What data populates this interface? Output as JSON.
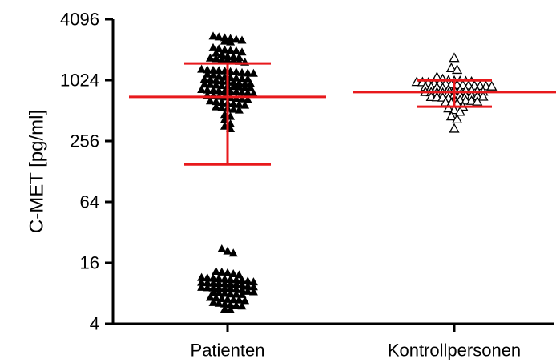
{
  "chart_data": {
    "type": "scatter",
    "title": "",
    "xlabel": "",
    "ylabel": "C-MET  [pg/ml]",
    "y_scale": "log2",
    "ylim": [
      4,
      4096
    ],
    "y_ticks": [
      4,
      16,
      64,
      256,
      1024,
      4096
    ],
    "y_tick_labels": [
      "4",
      "16",
      "64",
      "256",
      "1024",
      "4096"
    ],
    "categories": [
      "Patienten",
      "Kontrollpersonen"
    ],
    "grid": false,
    "legend": "none",
    "colors": {
      "points": "#000000",
      "summary": "#e8191c"
    },
    "series": [
      {
        "category": "Patienten",
        "marker": "filled-triangle",
        "mean": 700,
        "sd_upper": 1500,
        "sd_lower": 150,
        "values": [
          2500,
          2700,
          2600,
          2800,
          2450,
          2650,
          2750,
          2550,
          1900,
          2000,
          2100,
          1950,
          2050,
          1850,
          2150,
          2020,
          1600,
          1700,
          1650,
          1750,
          1550,
          1720,
          1620,
          1680,
          1580,
          1760,
          1200,
          1250,
          1300,
          1180,
          1280,
          1220,
          1320,
          1160,
          1240,
          1270,
          1210,
          1290,
          1050,
          1100,
          1000,
          1080,
          1020,
          1120,
          980,
          1060,
          1010,
          1090,
          1040,
          1070,
          900,
          950,
          870,
          920,
          890,
          940,
          880,
          960,
          910,
          930,
          860,
          945,
          780,
          800,
          760,
          820,
          790,
          810,
          770,
          830,
          795,
          815,
          700,
          680,
          720,
          660,
          690,
          710,
          670,
          730,
          620,
          600,
          640,
          580,
          610,
          630,
          590,
          540,
          560,
          520,
          550,
          530,
          450,
          420,
          470,
          340,
          380,
          360,
          22,
          21,
          20,
          12.5,
          13,
          12.8,
          12.2,
          13.2,
          11,
          11.5,
          10.8,
          11.2,
          10.6,
          11.4,
          11.1,
          10.9,
          11.3,
          10,
          10.2,
          9.8,
          10.4,
          9.9,
          10.1,
          9.7,
          10.3,
          10.05,
          9,
          9.3,
          8.8,
          9.1,
          8.9,
          9.2,
          8.7,
          9.4,
          8.95,
          9.05,
          8,
          8.2,
          7.8,
          8.4,
          7.9,
          8.1,
          7.85,
          8.3,
          7,
          7.2,
          6.8,
          7.3,
          6.9,
          7.1,
          6.95,
          6.2,
          6.4,
          6.0,
          6.5,
          6.1,
          6.3,
          5.5,
          5.6
        ]
      },
      {
        "category": "Kontrollpersonen",
        "marker": "open-triangle",
        "mean": 780,
        "sd_upper": 1020,
        "sd_lower": 560,
        "values": [
          1700,
          1350,
          1300,
          1050,
          1100,
          1000,
          980,
          1010,
          960,
          990,
          970,
          1020,
          950,
          1005,
          985,
          965,
          900,
          880,
          920,
          870,
          910,
          890,
          930,
          860,
          905,
          895,
          875,
          915,
          800,
          780,
          820,
          760,
          810,
          790,
          770,
          830,
          785,
          815,
          775,
          805,
          720,
          700,
          740,
          680,
          710,
          690,
          730,
          695,
          715,
          705,
          640,
          620,
          660,
          600,
          650,
          630,
          610,
          645,
          560,
          540,
          520,
          500,
          450,
          420,
          340
        ]
      }
    ]
  }
}
